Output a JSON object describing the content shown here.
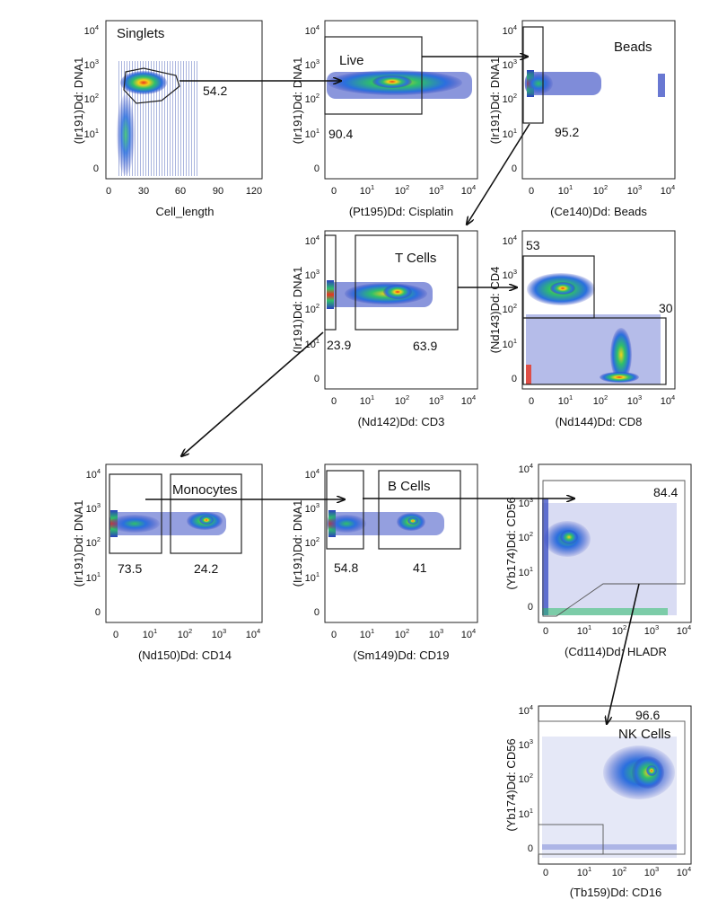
{
  "panels": {
    "p1": {
      "ylabel": "(Ir191)Dd: DNA1",
      "xlabel": "Cell_length",
      "xticks": [
        "0",
        "30",
        "60",
        "90",
        "120"
      ],
      "gate_label": "Singlets",
      "pct": "54.2"
    },
    "p2": {
      "ylabel": "(Ir191)Dd: DNA1",
      "xlabel": "(Pt195)Dd: Cisplatin",
      "gate_label": "Live",
      "pct": "90.4"
    },
    "p3": {
      "ylabel": "(Ir191)Dd: DNA1",
      "xlabel": "(Ce140)Dd: Beads",
      "gate_label": "Beads",
      "pct": "95.2"
    },
    "p4": {
      "ylabel": "(Ir191)Dd: DNA1",
      "xlabel": "(Nd142)Dd: CD3",
      "gate_label": "T Cells",
      "pct_left": "23.9",
      "pct_right": "63.9"
    },
    "p5": {
      "ylabel": "(Nd143)Dd: CD4",
      "xlabel": "(Nd144)Dd: CD8",
      "pct_top": "53",
      "pct_bottom": "30"
    },
    "p6": {
      "ylabel": "(Ir191)Dd: DNA1",
      "xlabel": "(Nd150)Dd: CD14",
      "gate_label": "Monocytes",
      "pct_left": "73.5",
      "pct_right": "24.2"
    },
    "p7": {
      "ylabel": "(Ir191)Dd: DNA1",
      "xlabel": "(Sm149)Dd: CD19",
      "gate_label": "B Cells",
      "pct_left": "54.8",
      "pct_right": "41"
    },
    "p8": {
      "ylabel": "(Yb174)Dd: CD56",
      "xlabel": "(Cd114)Dd: HLADR",
      "pct": "84.4"
    },
    "p9": {
      "ylabel": "(Yb174)Dd: CD56",
      "xlabel": "(Tb159)Dd: CD16",
      "gate_label": "NK Cells",
      "pct": "96.6"
    }
  },
  "ticks": {
    "zero": "0",
    "ten": "10",
    "exps": [
      "1",
      "2",
      "3",
      "4"
    ]
  },
  "colors": {
    "density_low": "#2a3fbf",
    "density_mid": "#2fbf6a",
    "density_high": "#f5d21a",
    "density_peak": "#e8321e"
  }
}
